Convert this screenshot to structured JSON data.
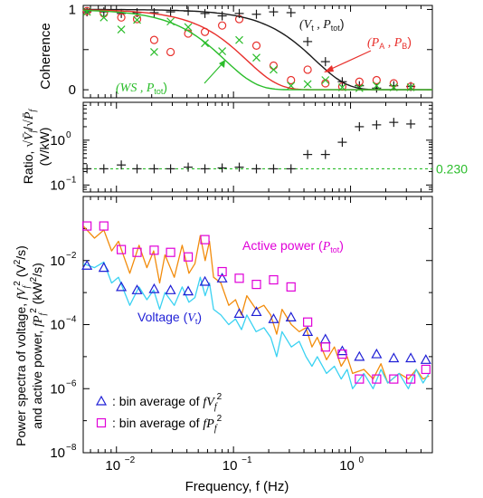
{
  "figure": {
    "xlabel": "Frequency, f (Hz)",
    "xticks": [
      {
        "value": 0.01,
        "base": "10",
        "exp": "−2"
      },
      {
        "value": 0.1,
        "base": "10",
        "exp": "−1"
      },
      {
        "value": 1,
        "base": "10",
        "exp": "0"
      }
    ],
    "xlim": [
      0.0052,
      5.0
    ]
  },
  "colors": {
    "black": "#1a1a1a",
    "red": "#e8302c",
    "green": "#2bbd2b",
    "magenta": "#e000d8",
    "blue": "#1f1fd6",
    "orange": "#f28c0c",
    "olive": "#a8952a",
    "cyan": "#3ad2f2"
  },
  "chart_data": [
    {
      "type": "scatter",
      "panel": "coherence",
      "ylabel": "Coherence",
      "ylim": [
        -0.1,
        1.05
      ],
      "yscale": "linear",
      "yticks": [
        "0",
        "1"
      ],
      "annotations": {
        "vt_ptot": [
          "(V",
          "t",
          " , P",
          "tot",
          ")"
        ],
        "pa_pb": [
          "(P",
          "A",
          " , P",
          "B",
          ")"
        ],
        "ws_ptot": [
          "(WS , P",
          "tot",
          ")"
        ]
      },
      "series": [
        {
          "name": "(Vt , Ptot)",
          "marker": "plus",
          "color": "black",
          "x": [
            0.0056,
            0.0078,
            0.011,
            0.015,
            0.021,
            0.029,
            0.041,
            0.057,
            0.08,
            0.112,
            0.157,
            0.22,
            0.31,
            0.43,
            0.61,
            0.85,
            1.19,
            1.67,
            2.34,
            3.27
          ],
          "y": [
            0.97,
            0.97,
            0.95,
            0.96,
            0.96,
            0.97,
            0.98,
            0.95,
            0.92,
            0.95,
            0.94,
            0.97,
            0.96,
            0.6,
            0.35,
            0.1,
            0.05,
            0.02,
            0.05,
            0.04
          ]
        },
        {
          "name": "(PA , PB)",
          "marker": "circle",
          "color": "red",
          "x": [
            0.0056,
            0.0078,
            0.011,
            0.015,
            0.021,
            0.029,
            0.041,
            0.057,
            0.08,
            0.112,
            0.157,
            0.22,
            0.31,
            0.43,
            0.61,
            0.85,
            1.19,
            1.67,
            2.34,
            3.27
          ],
          "y": [
            0.98,
            0.95,
            0.9,
            0.88,
            0.62,
            0.47,
            0.7,
            0.72,
            0.8,
            0.88,
            0.55,
            0.3,
            0.12,
            0.25,
            0.08,
            0.04,
            0.1,
            0.12,
            0.08,
            0.04
          ]
        },
        {
          "name": "(WS , Ptot)",
          "marker": "cross",
          "color": "green",
          "x": [
            0.0056,
            0.0078,
            0.011,
            0.015,
            0.021,
            0.029,
            0.041,
            0.057,
            0.08,
            0.112,
            0.157,
            0.22,
            0.31,
            0.43,
            0.61,
            0.85,
            1.19,
            1.67,
            2.34,
            3.27
          ],
          "y": [
            0.97,
            0.9,
            0.75,
            0.87,
            0.47,
            0.85,
            0.78,
            0.58,
            0.48,
            0.62,
            0.4,
            0.25,
            0.05,
            0.07,
            0.12,
            0.03,
            0.02,
            0.05,
            0.03,
            0.03
          ]
        },
        {
          "name": "(Vt , Ptot) fit",
          "marker": "line",
          "color": "black",
          "fc": 0.5
        },
        {
          "name": "(PA , PB) fit",
          "marker": "line",
          "color": "red",
          "fc": 0.13
        },
        {
          "name": "(WS , Ptot) fit",
          "marker": "line",
          "color": "green",
          "fc": 0.085
        }
      ]
    },
    {
      "type": "scatter",
      "panel": "ratio",
      "ylabel_lines": [
        "Ratio, √(V̄f) / √(P̄f)",
        "(V/kW)"
      ],
      "yscale": "log",
      "ylim": [
        0.07,
        7
      ],
      "yticks": [
        {
          "value": 0.1,
          "base": "10",
          "exp": "−1"
        },
        {
          "value": 1,
          "base": "10",
          "exp": "0"
        }
      ],
      "reference_line": {
        "value": 0.23,
        "label": "0.230",
        "color": "green"
      },
      "series": [
        {
          "name": "Ratio",
          "marker": "plus",
          "color": "black",
          "x": [
            0.0056,
            0.0078,
            0.011,
            0.015,
            0.021,
            0.029,
            0.041,
            0.057,
            0.08,
            0.112,
            0.157,
            0.22,
            0.31,
            0.43,
            0.61,
            0.85,
            1.19,
            1.67,
            2.34,
            3.27
          ],
          "y": [
            0.23,
            0.23,
            0.28,
            0.23,
            0.23,
            0.23,
            0.25,
            0.23,
            0.24,
            0.25,
            0.23,
            0.23,
            0.23,
            0.48,
            0.48,
            0.9,
            2.0,
            2.2,
            2.5,
            2.3
          ]
        }
      ]
    },
    {
      "type": "line",
      "panel": "spectra",
      "ylabel_lines": [
        "Power spectra of voltage, f V²_f (V²/s)",
        "and active power, f P²_f (kW²/s)"
      ],
      "yscale": "log",
      "ylim": [
        1e-08,
        1.0
      ],
      "yticks": [
        {
          "value": 1e-08,
          "base": "10",
          "exp": "−8"
        },
        {
          "value": 1e-06,
          "base": "10",
          "exp": "−6"
        },
        {
          "value": 0.0001,
          "base": "10",
          "exp": "−4"
        },
        {
          "value": 0.01,
          "base": "10",
          "exp": "−2"
        }
      ],
      "annotations": {
        "active_power": {
          "text": "Active power (",
          "sym": "P",
          "sub": "tot",
          "tail": ")"
        },
        "voltage": {
          "text": "Voltage (",
          "sym": "V",
          "sub": "t",
          "tail": ")"
        }
      },
      "legend": {
        "position": "bottom-left",
        "entries": [
          {
            "marker": "triangle",
            "color": "blue",
            "text": ": bin average of fV",
            "sub": "f",
            "sup": "2"
          },
          {
            "marker": "square",
            "color": "magenta",
            "text": ": bin average of fP",
            "sub": "f",
            "sup": "2"
          }
        ]
      },
      "series": [
        {
          "name": "Active power (Ptot) spectrum",
          "color": "orange",
          "x": [
            0.0052,
            0.0065,
            0.0078,
            0.0091,
            0.0104,
            0.013,
            0.0156,
            0.0182,
            0.0208,
            0.0234,
            0.026,
            0.0312,
            0.0364,
            0.0416,
            0.0468,
            0.052,
            0.0572,
            0.0624,
            0.0676,
            0.078,
            0.091,
            0.104,
            0.117,
            0.13,
            0.156,
            0.182,
            0.208,
            0.234,
            0.26,
            0.312,
            0.364,
            0.416,
            0.468,
            0.52,
            0.624,
            0.728,
            0.832,
            0.936,
            1.04,
            1.3,
            1.56,
            1.82,
            2.08,
            2.6,
            3.12,
            3.64,
            4.16,
            4.68
          ],
          "y": [
            0.12,
            0.05,
            0.09,
            0.02,
            0.04,
            0.004,
            0.03,
            0.006,
            0.02,
            0.002,
            0.015,
            0.003,
            0.03,
            0.004,
            0.008,
            0.06,
            0.01,
            0.04,
            0.003,
            0.002,
            0.0004,
            0.0006,
            0.0002,
            0.0008,
            0.0003,
            0.0004,
            0.0002,
            5e-05,
            0.0003,
            0.0001,
            6e-05,
            8e-05,
            2e-05,
            4e-05,
            8e-06,
            2e-05,
            5e-06,
            1e-05,
            3e-06,
            4e-06,
            2e-06,
            6e-06,
            1.5e-06,
            3e-06,
            2e-06,
            4e-06,
            2e-06,
            2.5e-06
          ]
        },
        {
          "name": "Voltage (Vt) spectrum",
          "color": "cyan",
          "x": [
            0.0052,
            0.0065,
            0.0078,
            0.0091,
            0.0104,
            0.013,
            0.0156,
            0.0182,
            0.0208,
            0.0234,
            0.026,
            0.0312,
            0.0364,
            0.0416,
            0.0468,
            0.052,
            0.0572,
            0.0624,
            0.0676,
            0.078,
            0.091,
            0.104,
            0.117,
            0.13,
            0.156,
            0.182,
            0.208,
            0.234,
            0.26,
            0.312,
            0.364,
            0.416,
            0.468,
            0.52,
            0.624,
            0.728,
            0.832,
            0.936,
            1.04,
            1.3,
            1.56,
            1.82,
            2.08,
            2.6,
            3.12,
            3.64,
            4.16,
            4.68
          ],
          "y": [
            0.008,
            0.006,
            0.009,
            0.002,
            0.003,
            0.0004,
            0.0015,
            0.0006,
            0.0012,
            0.0003,
            0.001,
            0.0004,
            0.0015,
            0.0005,
            0.0007,
            0.003,
            0.0008,
            0.002,
            0.0003,
            0.0002,
            0.0001,
            0.00015,
            7e-05,
            0.0002,
            6e-05,
            8e-05,
            4e-05,
            1e-05,
            6e-05,
            2e-05,
            3e-05,
            1e-05,
            5e-06,
            1e-05,
            3e-06,
            5e-06,
            2e-06,
            4e-06,
            1e-06,
            3e-06,
            1e-06,
            4e-06,
            1.5e-06,
            3e-06,
            1e-06,
            4e-06,
            1.5e-06,
            3e-06
          ]
        },
        {
          "name": "bin average of fVf2",
          "marker": "triangle",
          "color": "blue",
          "x": [
            0.0056,
            0.0078,
            0.011,
            0.015,
            0.021,
            0.029,
            0.041,
            0.057,
            0.08,
            0.112,
            0.157,
            0.22,
            0.31,
            0.43,
            0.61,
            0.85,
            1.19,
            1.67,
            2.34,
            3.27,
            4.4
          ],
          "y": [
            0.007,
            0.006,
            0.0015,
            0.0012,
            0.0013,
            0.0012,
            0.0011,
            0.0022,
            0.0028,
            0.00022,
            0.00025,
            0.00015,
            0.00017,
            6e-05,
            3.5e-05,
            1.5e-05,
            1e-05,
            1.2e-05,
            9e-06,
            9e-06,
            8e-06
          ]
        },
        {
          "name": "bin average of fPf2",
          "marker": "square",
          "color": "magenta",
          "x": [
            0.0056,
            0.0078,
            0.011,
            0.015,
            0.021,
            0.029,
            0.041,
            0.057,
            0.08,
            0.112,
            0.157,
            0.22,
            0.31,
            0.43,
            0.61,
            0.85,
            1.19,
            1.67,
            2.34,
            3.27,
            4.4
          ],
          "y": [
            0.12,
            0.12,
            0.022,
            0.018,
            0.021,
            0.018,
            0.013,
            0.045,
            0.0045,
            0.0028,
            0.0018,
            0.0025,
            0.0015,
            0.00012,
            2e-05,
            1.2e-05,
            2e-06,
            2e-06,
            2e-06,
            2e-06,
            4e-06
          ]
        }
      ]
    }
  ]
}
